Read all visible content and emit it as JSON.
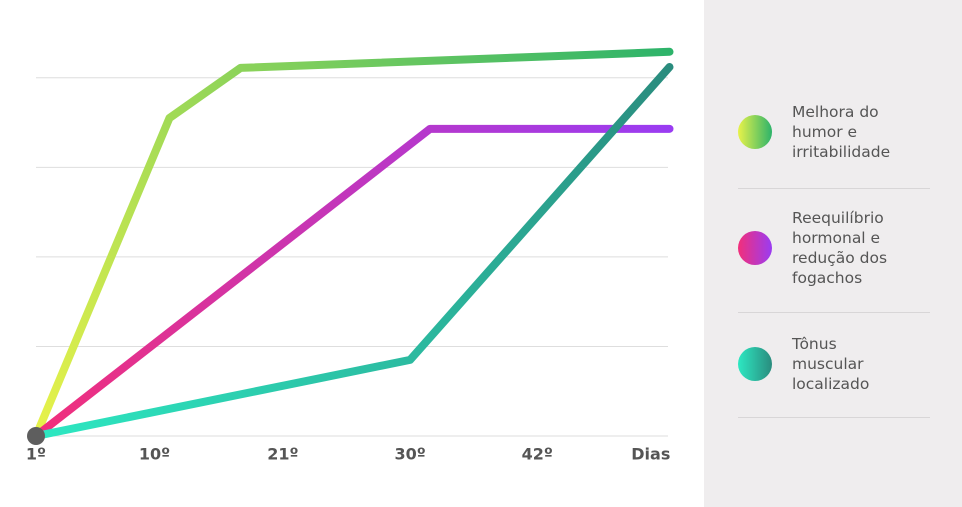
{
  "chart_data": {
    "type": "line",
    "xlim": [
      0,
      5.1
    ],
    "xticks": [
      {
        "value": 0,
        "label": "1º"
      },
      {
        "value": 0.95,
        "label": "10º"
      },
      {
        "value": 1.98,
        "label": "21º"
      },
      {
        "value": 3.0,
        "label": "30º"
      },
      {
        "value": 4.02,
        "label": "42º"
      },
      {
        "value": 4.93,
        "label": "Dias"
      }
    ],
    "ylim": [
      0,
      4.5
    ],
    "yticks": [
      0,
      1,
      2,
      3,
      4
    ],
    "grid": true,
    "series": [
      {
        "name": "Melhora do humor e irritabilidade",
        "color": [
          "#e8f24a",
          "#2db36a"
        ],
        "x": [
          0,
          1.07,
          1.64,
          5.08
        ],
        "values": [
          0,
          3.55,
          4.11,
          4.29
        ]
      },
      {
        "name": "Reequilíbrio hormonal e redução dos fogachos",
        "color": [
          "#f22f7a",
          "#9a3cf2"
        ],
        "x": [
          0,
          3.16,
          5.08
        ],
        "values": [
          0,
          3.43,
          3.43
        ]
      },
      {
        "name": "Tônus muscular localizado",
        "color": [
          "#2de8c2",
          "#2a8c7e"
        ],
        "x": [
          0,
          3.0,
          5.08
        ],
        "values": [
          0,
          0.85,
          4.12
        ]
      }
    ]
  }
}
